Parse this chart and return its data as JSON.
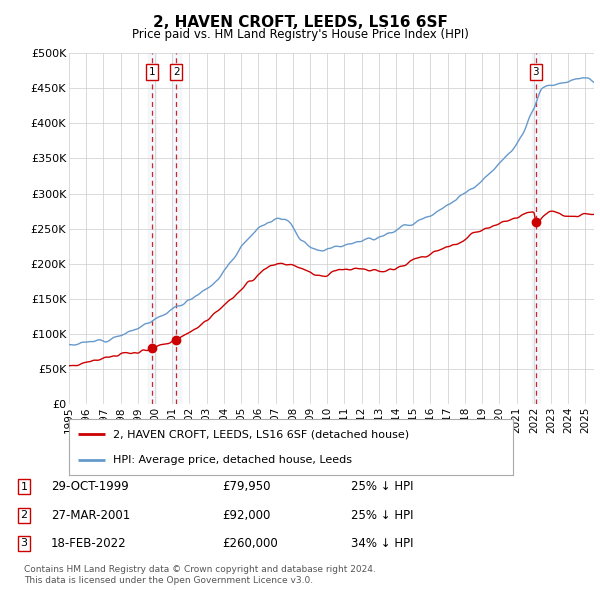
{
  "title": "2, HAVEN CROFT, LEEDS, LS16 6SF",
  "subtitle": "Price paid vs. HM Land Registry's House Price Index (HPI)",
  "xlim": [
    1995.0,
    2025.5
  ],
  "ylim": [
    0,
    500000
  ],
  "yticks": [
    0,
    50000,
    100000,
    150000,
    200000,
    250000,
    300000,
    350000,
    400000,
    450000,
    500000
  ],
  "ytick_labels": [
    "£0",
    "£50K",
    "£100K",
    "£150K",
    "£200K",
    "£250K",
    "£300K",
    "£350K",
    "£400K",
    "£450K",
    "£500K"
  ],
  "transactions": [
    {
      "num": 1,
      "date": "29-OCT-1999",
      "price": 79950,
      "year": 1999.83,
      "pct": "25%",
      "dir": "↓"
    },
    {
      "num": 2,
      "date": "27-MAR-2001",
      "price": 92000,
      "year": 2001.23,
      "pct": "25%",
      "dir": "↓"
    },
    {
      "num": 3,
      "date": "18-FEB-2022",
      "price": 260000,
      "year": 2022.12,
      "pct": "34%",
      "dir": "↓"
    }
  ],
  "legend_line1": "2, HAVEN CROFT, LEEDS, LS16 6SF (detached house)",
  "legend_line2": "HPI: Average price, detached house, Leeds",
  "footer1": "Contains HM Land Registry data © Crown copyright and database right 2024.",
  "footer2": "This data is licensed under the Open Government Licence v3.0.",
  "red_line_color": "#cc0000",
  "blue_line_color": "#6699cc",
  "background_color": "#ffffff",
  "grid_color": "#cccccc",
  "highlight_bg": "#ccddf0"
}
